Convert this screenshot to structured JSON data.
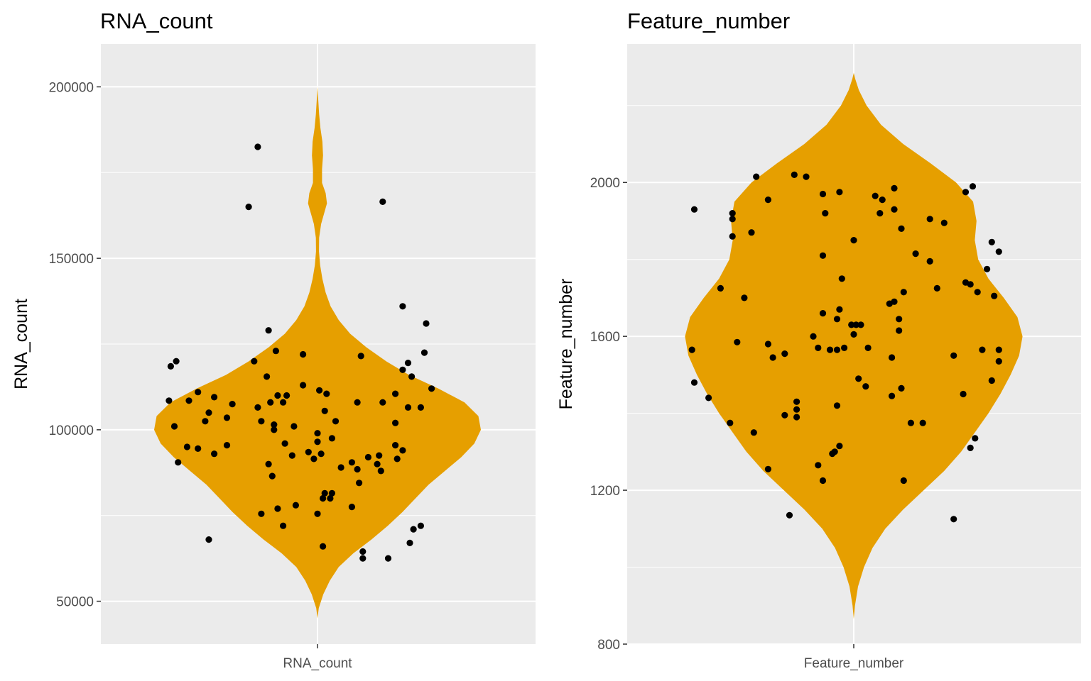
{
  "chart_data": [
    {
      "type": "violin",
      "title": "RNA_count",
      "xlabel": "",
      "ylabel": "RNA_count",
      "categories": [
        "RNA_count"
      ],
      "ylim": [
        37500,
        212500
      ],
      "yticks": [
        50000,
        100000,
        150000,
        200000
      ],
      "ytick_labels": [
        "50000",
        "100000",
        "150000",
        "200000"
      ],
      "grid": true,
      "fill_color": "#E69F00",
      "point_color": "#000000",
      "panel_bg": "#EBEBEB",
      "violin_profile": [
        [
          45000,
          0.0
        ],
        [
          48000,
          0.008
        ],
        [
          52000,
          0.035
        ],
        [
          56000,
          0.075
        ],
        [
          60000,
          0.13
        ],
        [
          64000,
          0.22
        ],
        [
          68000,
          0.33
        ],
        [
          72000,
          0.43
        ],
        [
          76000,
          0.52
        ],
        [
          80000,
          0.6
        ],
        [
          84000,
          0.68
        ],
        [
          88000,
          0.78
        ],
        [
          92000,
          0.88
        ],
        [
          96000,
          0.96
        ],
        [
          100000,
          1.0
        ],
        [
          104000,
          0.985
        ],
        [
          108000,
          0.9
        ],
        [
          112000,
          0.74
        ],
        [
          116000,
          0.56
        ],
        [
          120000,
          0.42
        ],
        [
          124000,
          0.3
        ],
        [
          128000,
          0.2
        ],
        [
          132000,
          0.13
        ],
        [
          136000,
          0.08
        ],
        [
          140000,
          0.05
        ],
        [
          144000,
          0.03
        ],
        [
          148000,
          0.016
        ],
        [
          152000,
          0.009
        ],
        [
          156000,
          0.01
        ],
        [
          160000,
          0.022
        ],
        [
          163000,
          0.04
        ],
        [
          166000,
          0.058
        ],
        [
          169000,
          0.05
        ],
        [
          172000,
          0.028
        ],
        [
          176000,
          0.028
        ],
        [
          180000,
          0.034
        ],
        [
          184000,
          0.03
        ],
        [
          188000,
          0.018
        ],
        [
          192000,
          0.01
        ],
        [
          196000,
          0.005
        ],
        [
          200000,
          0.0
        ]
      ],
      "points": [
        {
          "jitter": -0.81,
          "y": 118500
        },
        {
          "jitter": -0.78,
          "y": 120000
        },
        {
          "jitter": -0.82,
          "y": 108500
        },
        {
          "jitter": -0.79,
          "y": 101000
        },
        {
          "jitter": -0.77,
          "y": 90500
        },
        {
          "jitter": -0.71,
          "y": 108500
        },
        {
          "jitter": -0.72,
          "y": 95000
        },
        {
          "jitter": -0.66,
          "y": 111000
        },
        {
          "jitter": -0.66,
          "y": 94500
        },
        {
          "jitter": -0.62,
          "y": 102500
        },
        {
          "jitter": -0.6,
          "y": 105000
        },
        {
          "jitter": -0.57,
          "y": 109500
        },
        {
          "jitter": -0.57,
          "y": 93000
        },
        {
          "jitter": -0.6,
          "y": 68000
        },
        {
          "jitter": -0.5,
          "y": 103500
        },
        {
          "jitter": -0.47,
          "y": 107500
        },
        {
          "jitter": -0.5,
          "y": 95500
        },
        {
          "jitter": -0.38,
          "y": 165000
        },
        {
          "jitter": -0.33,
          "y": 182500
        },
        {
          "jitter": -0.35,
          "y": 120000
        },
        {
          "jitter": -0.33,
          "y": 106500
        },
        {
          "jitter": -0.31,
          "y": 102500
        },
        {
          "jitter": -0.28,
          "y": 115500
        },
        {
          "jitter": -0.27,
          "y": 129000
        },
        {
          "jitter": -0.31,
          "y": 75500
        },
        {
          "jitter": -0.26,
          "y": 108000
        },
        {
          "jitter": -0.27,
          "y": 90000
        },
        {
          "jitter": -0.25,
          "y": 86500
        },
        {
          "jitter": -0.24,
          "y": 100000
        },
        {
          "jitter": -0.24,
          "y": 101500
        },
        {
          "jitter": -0.23,
          "y": 123000
        },
        {
          "jitter": -0.22,
          "y": 110000
        },
        {
          "jitter": -0.22,
          "y": 77000
        },
        {
          "jitter": -0.19,
          "y": 108000
        },
        {
          "jitter": -0.19,
          "y": 72000
        },
        {
          "jitter": -0.18,
          "y": 96000
        },
        {
          "jitter": -0.17,
          "y": 110000
        },
        {
          "jitter": -0.13,
          "y": 101000
        },
        {
          "jitter": -0.14,
          "y": 92500
        },
        {
          "jitter": -0.12,
          "y": 78000
        },
        {
          "jitter": -0.08,
          "y": 113000
        },
        {
          "jitter": -0.08,
          "y": 122000
        },
        {
          "jitter": -0.05,
          "y": 93500
        },
        {
          "jitter": -0.02,
          "y": 91500
        },
        {
          "jitter": 0.0,
          "y": 75500
        },
        {
          "jitter": 0.0,
          "y": 96500
        },
        {
          "jitter": 0.0,
          "y": 99000
        },
        {
          "jitter": 0.01,
          "y": 111500
        },
        {
          "jitter": 0.02,
          "y": 93000
        },
        {
          "jitter": 0.03,
          "y": 80000
        },
        {
          "jitter": 0.03,
          "y": 66000
        },
        {
          "jitter": 0.04,
          "y": 105500
        },
        {
          "jitter": 0.04,
          "y": 81500
        },
        {
          "jitter": 0.05,
          "y": 110500
        },
        {
          "jitter": 0.07,
          "y": 80000
        },
        {
          "jitter": 0.08,
          "y": 97500
        },
        {
          "jitter": 0.08,
          "y": 81500
        },
        {
          "jitter": 0.1,
          "y": 102500
        },
        {
          "jitter": 0.13,
          "y": 89000
        },
        {
          "jitter": 0.19,
          "y": 77500
        },
        {
          "jitter": 0.19,
          "y": 90500
        },
        {
          "jitter": 0.22,
          "y": 108000
        },
        {
          "jitter": 0.22,
          "y": 88500
        },
        {
          "jitter": 0.23,
          "y": 84500
        },
        {
          "jitter": 0.24,
          "y": 121500
        },
        {
          "jitter": 0.25,
          "y": 64500
        },
        {
          "jitter": 0.25,
          "y": 62500
        },
        {
          "jitter": 0.28,
          "y": 92000
        },
        {
          "jitter": 0.33,
          "y": 90000
        },
        {
          "jitter": 0.34,
          "y": 92500
        },
        {
          "jitter": 0.35,
          "y": 88000
        },
        {
          "jitter": 0.36,
          "y": 108000
        },
        {
          "jitter": 0.36,
          "y": 166500
        },
        {
          "jitter": 0.39,
          "y": 62500
        },
        {
          "jitter": 0.43,
          "y": 95500
        },
        {
          "jitter": 0.43,
          "y": 102000
        },
        {
          "jitter": 0.44,
          "y": 91500
        },
        {
          "jitter": 0.43,
          "y": 110500
        },
        {
          "jitter": 0.47,
          "y": 94000
        },
        {
          "jitter": 0.47,
          "y": 117500
        },
        {
          "jitter": 0.47,
          "y": 136000
        },
        {
          "jitter": 0.5,
          "y": 119500
        },
        {
          "jitter": 0.5,
          "y": 106500
        },
        {
          "jitter": 0.51,
          "y": 67000
        },
        {
          "jitter": 0.52,
          "y": 115500
        },
        {
          "jitter": 0.53,
          "y": 71000
        },
        {
          "jitter": 0.57,
          "y": 106500
        },
        {
          "jitter": 0.57,
          "y": 72000
        },
        {
          "jitter": 0.59,
          "y": 122500
        },
        {
          "jitter": 0.6,
          "y": 131000
        },
        {
          "jitter": 0.63,
          "y": 112000
        }
      ]
    },
    {
      "type": "violin",
      "title": "Feature_number",
      "xlabel": "",
      "ylabel": "Feature_number",
      "categories": [
        "Feature_number"
      ],
      "ylim": [
        800,
        2360
      ],
      "yticks": [
        800,
        1200,
        1600,
        2000
      ],
      "ytick_labels": [
        "800",
        "1200",
        "1600",
        "2000"
      ],
      "grid": true,
      "fill_color": "#E69F00",
      "point_color": "#000000",
      "panel_bg": "#EBEBEB",
      "violin_profile": [
        [
          865,
          0.0
        ],
        [
          900,
          0.007
        ],
        [
          950,
          0.025
        ],
        [
          1000,
          0.06
        ],
        [
          1050,
          0.11
        ],
        [
          1100,
          0.185
        ],
        [
          1150,
          0.29
        ],
        [
          1200,
          0.41
        ],
        [
          1250,
          0.53
        ],
        [
          1300,
          0.63
        ],
        [
          1350,
          0.71
        ],
        [
          1400,
          0.79
        ],
        [
          1450,
          0.86
        ],
        [
          1500,
          0.92
        ],
        [
          1550,
          0.97
        ],
        [
          1600,
          0.99
        ],
        [
          1650,
          0.96
        ],
        [
          1700,
          0.88
        ],
        [
          1750,
          0.79
        ],
        [
          1800,
          0.73
        ],
        [
          1850,
          0.71
        ],
        [
          1900,
          0.72
        ],
        [
          1950,
          0.7
        ],
        [
          2000,
          0.6
        ],
        [
          2050,
          0.45
        ],
        [
          2100,
          0.29
        ],
        [
          2150,
          0.16
        ],
        [
          2200,
          0.075
        ],
        [
          2240,
          0.03
        ],
        [
          2270,
          0.008
        ],
        [
          2285,
          0.0
        ]
      ],
      "points": [
        {
          "jitter": -0.67,
          "y": 1930
        },
        {
          "jitter": -0.68,
          "y": 1565
        },
        {
          "jitter": -0.67,
          "y": 1480
        },
        {
          "jitter": -0.61,
          "y": 1440
        },
        {
          "jitter": -0.56,
          "y": 1725
        },
        {
          "jitter": -0.51,
          "y": 1920
        },
        {
          "jitter": -0.51,
          "y": 1905
        },
        {
          "jitter": -0.51,
          "y": 1860
        },
        {
          "jitter": -0.52,
          "y": 1375
        },
        {
          "jitter": -0.49,
          "y": 1585
        },
        {
          "jitter": -0.46,
          "y": 1700
        },
        {
          "jitter": -0.43,
          "y": 1870
        },
        {
          "jitter": -0.42,
          "y": 1350
        },
        {
          "jitter": -0.41,
          "y": 2015
        },
        {
          "jitter": -0.36,
          "y": 1955
        },
        {
          "jitter": -0.36,
          "y": 1580
        },
        {
          "jitter": -0.36,
          "y": 1255
        },
        {
          "jitter": -0.34,
          "y": 1545
        },
        {
          "jitter": -0.29,
          "y": 1555
        },
        {
          "jitter": -0.29,
          "y": 1395
        },
        {
          "jitter": -0.27,
          "y": 1135
        },
        {
          "jitter": -0.25,
          "y": 2020
        },
        {
          "jitter": -0.24,
          "y": 1430
        },
        {
          "jitter": -0.24,
          "y": 1410
        },
        {
          "jitter": -0.24,
          "y": 1390
        },
        {
          "jitter": -0.2,
          "y": 2015
        },
        {
          "jitter": -0.17,
          "y": 1600
        },
        {
          "jitter": -0.15,
          "y": 1265
        },
        {
          "jitter": -0.15,
          "y": 1570
        },
        {
          "jitter": -0.13,
          "y": 1970
        },
        {
          "jitter": -0.13,
          "y": 1810
        },
        {
          "jitter": -0.13,
          "y": 1660
        },
        {
          "jitter": -0.13,
          "y": 1225
        },
        {
          "jitter": -0.12,
          "y": 1920
        },
        {
          "jitter": -0.1,
          "y": 1565
        },
        {
          "jitter": -0.09,
          "y": 1295
        },
        {
          "jitter": -0.08,
          "y": 1300
        },
        {
          "jitter": -0.07,
          "y": 1565
        },
        {
          "jitter": -0.07,
          "y": 1645
        },
        {
          "jitter": -0.07,
          "y": 1420
        },
        {
          "jitter": -0.06,
          "y": 1975
        },
        {
          "jitter": -0.06,
          "y": 1670
        },
        {
          "jitter": -0.06,
          "y": 1315
        },
        {
          "jitter": -0.05,
          "y": 1750
        },
        {
          "jitter": -0.04,
          "y": 1570
        },
        {
          "jitter": -0.01,
          "y": 1630
        },
        {
          "jitter": 0.0,
          "y": 1850
        },
        {
          "jitter": 0.0,
          "y": 1605
        },
        {
          "jitter": 0.01,
          "y": 1630
        },
        {
          "jitter": 0.02,
          "y": 1490
        },
        {
          "jitter": 0.03,
          "y": 1630
        },
        {
          "jitter": 0.05,
          "y": 1470
        },
        {
          "jitter": 0.06,
          "y": 1570
        },
        {
          "jitter": 0.09,
          "y": 1965
        },
        {
          "jitter": 0.11,
          "y": 1920
        },
        {
          "jitter": 0.12,
          "y": 1955
        },
        {
          "jitter": 0.15,
          "y": 1685
        },
        {
          "jitter": 0.16,
          "y": 1545
        },
        {
          "jitter": 0.16,
          "y": 1445
        },
        {
          "jitter": 0.17,
          "y": 1690
        },
        {
          "jitter": 0.17,
          "y": 1985
        },
        {
          "jitter": 0.17,
          "y": 1930
        },
        {
          "jitter": 0.19,
          "y": 1645
        },
        {
          "jitter": 0.19,
          "y": 1615
        },
        {
          "jitter": 0.2,
          "y": 1465
        },
        {
          "jitter": 0.2,
          "y": 1880
        },
        {
          "jitter": 0.21,
          "y": 1715
        },
        {
          "jitter": 0.21,
          "y": 1225
        },
        {
          "jitter": 0.24,
          "y": 1375
        },
        {
          "jitter": 0.26,
          "y": 1815
        },
        {
          "jitter": 0.29,
          "y": 1375
        },
        {
          "jitter": 0.32,
          "y": 1905
        },
        {
          "jitter": 0.32,
          "y": 1795
        },
        {
          "jitter": 0.35,
          "y": 1725
        },
        {
          "jitter": 0.38,
          "y": 1895
        },
        {
          "jitter": 0.42,
          "y": 1550
        },
        {
          "jitter": 0.42,
          "y": 1125
        },
        {
          "jitter": 0.46,
          "y": 1450
        },
        {
          "jitter": 0.47,
          "y": 1740
        },
        {
          "jitter": 0.47,
          "y": 1975
        },
        {
          "jitter": 0.49,
          "y": 1735
        },
        {
          "jitter": 0.49,
          "y": 1310
        },
        {
          "jitter": 0.5,
          "y": 1990
        },
        {
          "jitter": 0.51,
          "y": 1335
        },
        {
          "jitter": 0.52,
          "y": 1715
        },
        {
          "jitter": 0.54,
          "y": 1565
        },
        {
          "jitter": 0.56,
          "y": 1775
        },
        {
          "jitter": 0.58,
          "y": 1485
        },
        {
          "jitter": 0.58,
          "y": 1845
        },
        {
          "jitter": 0.59,
          "y": 1705
        },
        {
          "jitter": 0.61,
          "y": 1820
        },
        {
          "jitter": 0.61,
          "y": 1565
        },
        {
          "jitter": 0.61,
          "y": 1535
        }
      ]
    }
  ]
}
